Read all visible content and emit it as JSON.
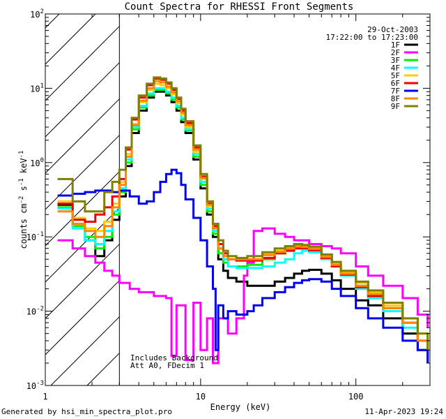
{
  "chart_data": {
    "type": "line",
    "title": "Count Spectra for RHESSI Front Segments",
    "xlabel": "Energy (keV)",
    "ylabel_base": "counts cm",
    "ylabel_exp1": "-2",
    "ylabel_mid1": " s",
    "ylabel_exp2": "-1",
    "ylabel_mid2": " keV",
    "ylabel_exp3": "-1",
    "xscale": "log",
    "yscale": "log",
    "xlim": [
      1,
      300
    ],
    "ylim": [
      0.001,
      100
    ],
    "x_ticks": [
      {
        "value": 1,
        "label": "1"
      },
      {
        "value": 10,
        "label": "10"
      },
      {
        "value": 100,
        "label": "100"
      }
    ],
    "y_ticks": [
      {
        "value": 0.001,
        "base": "10",
        "exp": "-3"
      },
      {
        "value": 0.01,
        "base": "10",
        "exp": "-2"
      },
      {
        "value": 0.1,
        "base": "10",
        "exp": "-1"
      },
      {
        "value": 1,
        "base": "10",
        "exp": "0"
      },
      {
        "value": 10,
        "base": "10",
        "exp": "1"
      },
      {
        "value": 100,
        "base": "10",
        "exp": "2"
      }
    ],
    "date": "29-Oct-2003",
    "time_range": "17:22:00 to 17:23:00",
    "excluded_region_max_kev": 3,
    "annotations": [
      "Includes Background",
      "Att A0, FDecim 1"
    ],
    "series": [
      {
        "name": "1F",
        "color": "#000000",
        "x": [
          1.2,
          1.5,
          1.8,
          2.1,
          2.4,
          2.7,
          3.0,
          3.3,
          3.6,
          4.0,
          4.5,
          5.0,
          5.5,
          6.0,
          6.5,
          7.0,
          7.5,
          8.0,
          9.0,
          10.0,
          11.0,
          12.0,
          13.0,
          14.0,
          15.0,
          17.0,
          20.0,
          25.0,
          30.0,
          35.0,
          40.0,
          45.0,
          50.0,
          60.0,
          70.0,
          80.0,
          100.0,
          120.0,
          150.0,
          200.0,
          250.0,
          290.0
        ],
        "y": [
          0.27,
          0.15,
          0.09,
          0.055,
          0.09,
          0.17,
          0.35,
          0.9,
          2.5,
          5.0,
          7.5,
          9.0,
          9.0,
          8.0,
          6.5,
          5.0,
          3.5,
          2.5,
          1.1,
          0.45,
          0.2,
          0.1,
          0.05,
          0.035,
          0.028,
          0.025,
          0.022,
          0.022,
          0.025,
          0.028,
          0.032,
          0.035,
          0.036,
          0.032,
          0.026,
          0.02,
          0.014,
          0.012,
          0.008,
          0.005,
          0.003,
          0.002
        ]
      },
      {
        "name": "2F",
        "color": "#ff00ff",
        "x": [
          1.2,
          1.5,
          1.8,
          2.1,
          2.4,
          2.7,
          3.0,
          3.5,
          4.0,
          5.0,
          6.0,
          6.5,
          7.0,
          8.0,
          9.0,
          10.0,
          11.0,
          12.0,
          13.0,
          15.0,
          17.0,
          19.0,
          20.0,
          22.0,
          25.0,
          30.0,
          35.0,
          40.0,
          50.0,
          60.0,
          70.0,
          80.0,
          100.0,
          120.0,
          150.0,
          200.0,
          250.0,
          290.0
        ],
        "y": [
          0.09,
          0.07,
          0.055,
          0.045,
          0.035,
          0.03,
          0.024,
          0.02,
          0.018,
          0.016,
          0.015,
          0.0025,
          0.012,
          0.0022,
          0.013,
          0.003,
          0.008,
          0.002,
          0.008,
          0.005,
          0.008,
          0.03,
          0.045,
          0.12,
          0.13,
          0.11,
          0.1,
          0.09,
          0.08,
          0.075,
          0.07,
          0.06,
          0.04,
          0.03,
          0.022,
          0.015,
          0.009,
          0.006
        ]
      },
      {
        "name": "3F",
        "color": "#00ee00",
        "x": [
          1.2,
          1.5,
          1.8,
          2.1,
          2.4,
          2.7,
          3.0,
          3.3,
          3.6,
          4.0,
          4.5,
          5.0,
          5.5,
          6.0,
          6.5,
          7.0,
          7.5,
          8.0,
          9.0,
          10.0,
          11.0,
          12.0,
          13.0,
          14.0,
          15.0,
          17.0,
          20.0,
          25.0,
          30.0,
          35.0,
          40.0,
          45.0,
          50.0,
          60.0,
          70.0,
          80.0,
          100.0,
          120.0,
          150.0,
          200.0,
          250.0,
          290.0
        ],
        "y": [
          0.25,
          0.14,
          0.1,
          0.07,
          0.1,
          0.2,
          0.4,
          1.0,
          2.8,
          5.5,
          8.0,
          9.5,
          9.5,
          8.5,
          7.0,
          5.5,
          3.8,
          2.7,
          1.2,
          0.5,
          0.22,
          0.11,
          0.06,
          0.045,
          0.04,
          0.04,
          0.042,
          0.05,
          0.06,
          0.068,
          0.075,
          0.073,
          0.07,
          0.055,
          0.042,
          0.032,
          0.022,
          0.016,
          0.011,
          0.007,
          0.004,
          0.003
        ]
      },
      {
        "name": "4F",
        "color": "#00ffff",
        "x": [
          1.2,
          1.5,
          1.8,
          2.1,
          2.4,
          2.7,
          3.0,
          3.3,
          3.6,
          4.0,
          4.5,
          5.0,
          5.5,
          6.0,
          6.5,
          7.0,
          7.5,
          8.0,
          9.0,
          10.0,
          11.0,
          12.0,
          13.0,
          14.0,
          15.0,
          17.0,
          20.0,
          25.0,
          30.0,
          35.0,
          40.0,
          45.0,
          50.0,
          60.0,
          70.0,
          80.0,
          100.0,
          120.0,
          150.0,
          200.0,
          250.0,
          290.0
        ],
        "y": [
          0.24,
          0.13,
          0.09,
          0.08,
          0.12,
          0.22,
          0.45,
          1.1,
          3.0,
          5.8,
          8.5,
          10.0,
          10.0,
          9.0,
          7.5,
          5.8,
          4.0,
          2.8,
          1.3,
          0.55,
          0.24,
          0.12,
          0.07,
          0.05,
          0.04,
          0.038,
          0.038,
          0.04,
          0.045,
          0.05,
          0.06,
          0.065,
          0.062,
          0.05,
          0.04,
          0.03,
          0.02,
          0.015,
          0.01,
          0.006,
          0.004,
          0.003
        ]
      },
      {
        "name": "5F",
        "color": "#ffcc00",
        "x": [
          1.2,
          1.5,
          1.8,
          2.1,
          2.4,
          2.7,
          3.0,
          3.3,
          3.6,
          4.0,
          4.5,
          5.0,
          5.5,
          6.0,
          6.5,
          7.0,
          7.5,
          8.0,
          9.0,
          10.0,
          11.0,
          12.0,
          13.0,
          14.0,
          15.0,
          17.0,
          20.0,
          25.0,
          30.0,
          35.0,
          40.0,
          45.0,
          50.0,
          60.0,
          70.0,
          80.0,
          100.0,
          120.0,
          150.0,
          200.0,
          250.0,
          290.0
        ],
        "y": [
          0.3,
          0.18,
          0.13,
          0.12,
          0.16,
          0.28,
          0.55,
          1.3,
          3.3,
          6.5,
          9.5,
          11.5,
          11.0,
          10.0,
          8.3,
          6.3,
          4.4,
          3.0,
          1.4,
          0.6,
          0.26,
          0.13,
          0.07,
          0.055,
          0.05,
          0.048,
          0.05,
          0.058,
          0.065,
          0.072,
          0.078,
          0.076,
          0.072,
          0.056,
          0.044,
          0.034,
          0.024,
          0.018,
          0.012,
          0.008,
          0.005,
          0.003
        ]
      },
      {
        "name": "6F",
        "color": "#ee0000",
        "x": [
          1.2,
          1.5,
          1.8,
          2.1,
          2.4,
          2.7,
          3.0,
          3.3,
          3.6,
          4.0,
          4.5,
          5.0,
          5.5,
          6.0,
          6.5,
          7.0,
          7.5,
          8.0,
          9.0,
          10.0,
          11.0,
          12.0,
          13.0,
          14.0,
          15.0,
          17.0,
          20.0,
          25.0,
          30.0,
          35.0,
          40.0,
          45.0,
          50.0,
          60.0,
          70.0,
          80.0,
          100.0,
          120.0,
          150.0,
          200.0,
          250.0,
          290.0
        ],
        "y": [
          0.28,
          0.17,
          0.16,
          0.2,
          0.25,
          0.35,
          0.6,
          1.5,
          3.8,
          7.5,
          11.0,
          13.5,
          13.0,
          11.5,
          9.5,
          7.2,
          5.0,
          3.4,
          1.6,
          0.65,
          0.28,
          0.14,
          0.08,
          0.06,
          0.05,
          0.048,
          0.048,
          0.052,
          0.06,
          0.065,
          0.07,
          0.07,
          0.066,
          0.052,
          0.04,
          0.031,
          0.021,
          0.016,
          0.011,
          0.007,
          0.004,
          0.003
        ]
      },
      {
        "name": "7F",
        "color": "#0000ee",
        "x": [
          1.2,
          1.5,
          1.8,
          2.1,
          2.4,
          2.7,
          3.0,
          3.5,
          4.0,
          4.5,
          5.0,
          5.5,
          6.0,
          6.5,
          7.0,
          7.5,
          8.0,
          9.0,
          10.0,
          11.0,
          12.0,
          12.5,
          13.0,
          14.0,
          15.0,
          17.0,
          20.0,
          22.0,
          25.0,
          30.0,
          35.0,
          40.0,
          45.0,
          50.0,
          60.0,
          70.0,
          80.0,
          100.0,
          120.0,
          150.0,
          200.0,
          250.0,
          290.0
        ],
        "y": [
          0.36,
          0.38,
          0.4,
          0.42,
          0.42,
          0.4,
          0.42,
          0.35,
          0.28,
          0.3,
          0.4,
          0.55,
          0.7,
          0.8,
          0.72,
          0.5,
          0.32,
          0.18,
          0.09,
          0.04,
          0.02,
          0.003,
          0.012,
          0.008,
          0.01,
          0.009,
          0.01,
          0.012,
          0.015,
          0.018,
          0.021,
          0.024,
          0.026,
          0.027,
          0.025,
          0.02,
          0.016,
          0.011,
          0.008,
          0.006,
          0.004,
          0.003,
          0.002
        ]
      },
      {
        "name": "8F",
        "color": "#ff8800",
        "x": [
          1.2,
          1.5,
          1.8,
          2.1,
          2.4,
          2.7,
          3.0,
          3.3,
          3.6,
          4.0,
          4.5,
          5.0,
          5.5,
          6.0,
          6.5,
          7.0,
          7.5,
          8.0,
          9.0,
          10.0,
          11.0,
          12.0,
          13.0,
          14.0,
          15.0,
          17.0,
          20.0,
          25.0,
          30.0,
          35.0,
          40.0,
          45.0,
          50.0,
          60.0,
          70.0,
          80.0,
          100.0,
          120.0,
          150.0,
          200.0,
          250.0,
          290.0
        ],
        "y": [
          0.22,
          0.15,
          0.12,
          0.1,
          0.14,
          0.25,
          0.5,
          1.2,
          3.2,
          6.8,
          10.0,
          12.5,
          12.0,
          10.5,
          8.8,
          6.7,
          4.7,
          3.2,
          1.5,
          0.62,
          0.27,
          0.13,
          0.07,
          0.055,
          0.05,
          0.05,
          0.05,
          0.057,
          0.063,
          0.07,
          0.075,
          0.073,
          0.069,
          0.054,
          0.042,
          0.032,
          0.022,
          0.017,
          0.011,
          0.007,
          0.004,
          0.003
        ]
      },
      {
        "name": "9F",
        "color": "#808000",
        "x": [
          1.2,
          1.5,
          1.8,
          2.1,
          2.4,
          2.7,
          3.0,
          3.3,
          3.6,
          4.0,
          4.5,
          5.0,
          5.5,
          6.0,
          6.5,
          7.0,
          7.5,
          8.0,
          9.0,
          10.0,
          11.0,
          12.0,
          13.0,
          14.0,
          15.0,
          17.0,
          20.0,
          25.0,
          30.0,
          35.0,
          40.0,
          45.0,
          50.0,
          60.0,
          70.0,
          80.0,
          100.0,
          120.0,
          150.0,
          200.0,
          250.0,
          290.0
        ],
        "y": [
          0.6,
          0.3,
          0.22,
          0.22,
          0.4,
          0.55,
          0.8,
          1.6,
          4.0,
          8.0,
          11.5,
          14.0,
          13.5,
          12.0,
          10.0,
          7.5,
          5.3,
          3.6,
          1.7,
          0.7,
          0.3,
          0.15,
          0.09,
          0.065,
          0.055,
          0.052,
          0.055,
          0.062,
          0.07,
          0.075,
          0.08,
          0.078,
          0.074,
          0.058,
          0.046,
          0.035,
          0.025,
          0.019,
          0.013,
          0.008,
          0.005,
          0.003
        ]
      }
    ]
  },
  "footer": {
    "generated_by": "Generated by hsi_min_spectra_plot.pro",
    "timestamp": "11-Apr-2023 19:24"
  }
}
